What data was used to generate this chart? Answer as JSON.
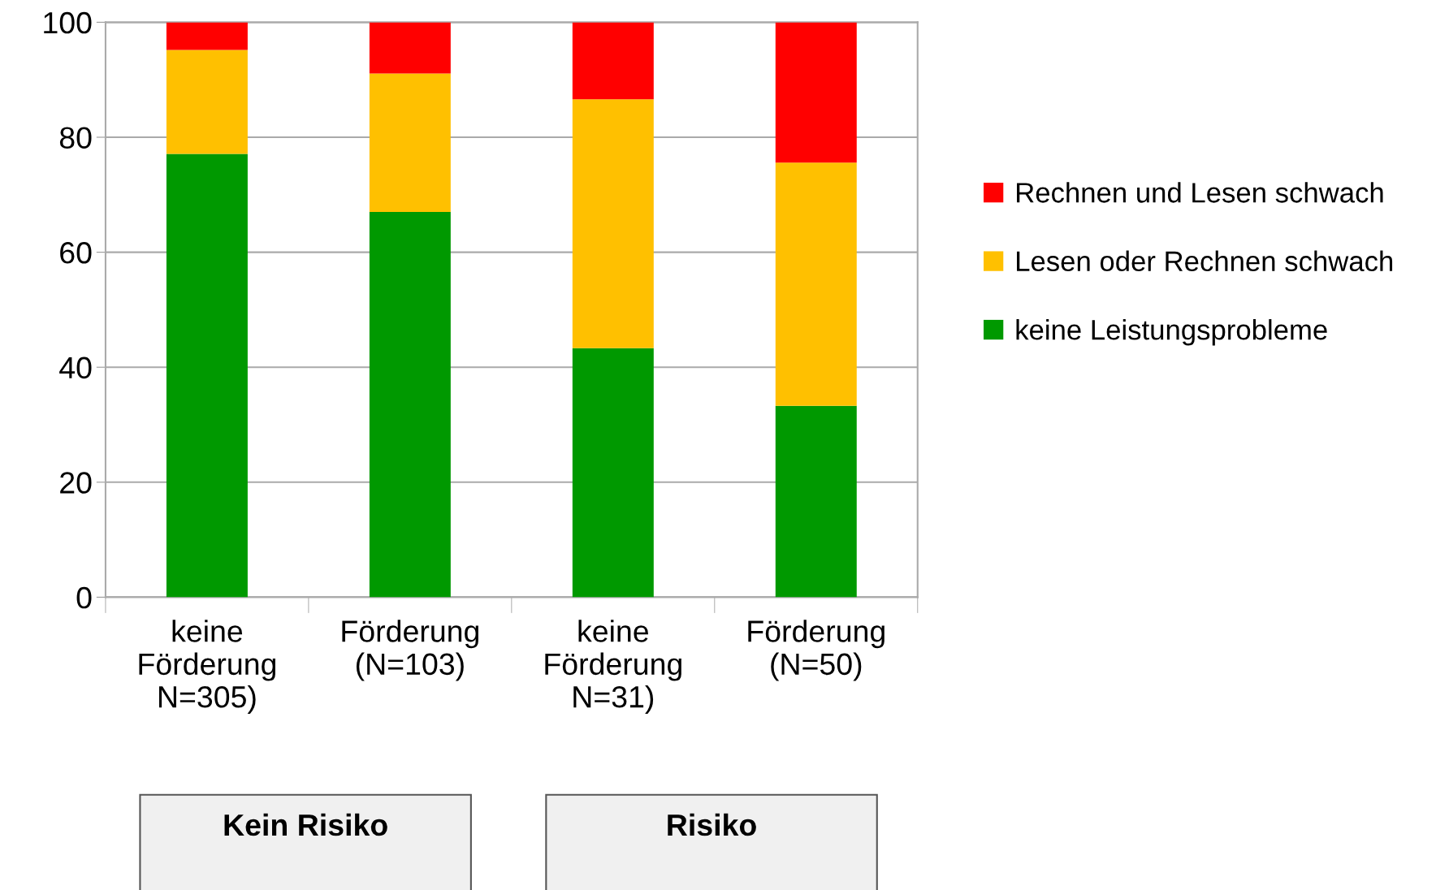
{
  "chart_data": {
    "type": "bar",
    "stacked": true,
    "categories": [
      "keine\nFörderung\nN=305)",
      "Förderung\n(N=103)",
      "keine\nFörderung\nN=31)",
      "Förderung\n(N=50)"
    ],
    "series": [
      {
        "name": "keine Leistungsprobleme",
        "color": "#009900",
        "values": [
          77.1,
          67.0,
          43.3,
          33.3
        ]
      },
      {
        "name": "Lesen oder Rechnen schwach",
        "color": "#ffc000",
        "values": [
          18.1,
          24.1,
          43.3,
          42.3
        ]
      },
      {
        "name": "Rechnen und Lesen schwach",
        "color": "#ff0000",
        "values": [
          4.8,
          8.9,
          13.4,
          24.4
        ]
      }
    ],
    "ylim": [
      0,
      100
    ],
    "yticks": [
      0,
      20,
      40,
      60,
      80,
      100
    ],
    "grid": "y",
    "legend": "right",
    "annotations": [
      "Kein Risiko",
      "Risiko"
    ]
  }
}
